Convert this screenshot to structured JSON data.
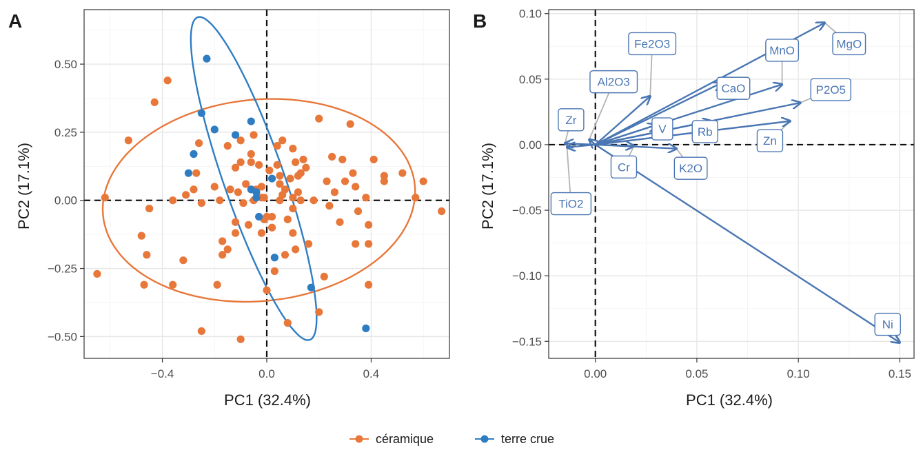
{
  "chart_data": [
    {
      "panel": "A",
      "type": "scatter",
      "xlabel": "PC1 (32.4%)",
      "ylabel": "PC2 (17.1%)",
      "xlim": [
        -0.7,
        0.7
      ],
      "ylim": [
        -0.58,
        0.7
      ],
      "xticks": [
        -0.4,
        0.0,
        0.4
      ],
      "xtick_labels": [
        "−0.4",
        "0.0",
        "0.4"
      ],
      "yticks": [
        -0.5,
        -0.25,
        0.0,
        0.25,
        0.5
      ],
      "ytick_labels": [
        "−0.50",
        "−0.25",
        "0.00",
        "0.25",
        "0.50"
      ],
      "grid": true,
      "reference_lines": {
        "x": 0,
        "y": 0,
        "style": "dashed"
      },
      "series": [
        {
          "name": "céramique",
          "color": "#e8773a",
          "ellipse": {
            "cx": -0.03,
            "cy": 0.0,
            "rx": 0.6,
            "ry": 0.37,
            "angle_deg": 5
          },
          "points": [
            [
              -0.65,
              -0.27
            ],
            [
              -0.62,
              0.01
            ],
            [
              -0.53,
              0.22
            ],
            [
              -0.48,
              -0.13
            ],
            [
              -0.47,
              -0.31
            ],
            [
              -0.46,
              -0.2
            ],
            [
              -0.45,
              -0.03
            ],
            [
              -0.43,
              0.36
            ],
            [
              -0.38,
              0.44
            ],
            [
              -0.36,
              0.0
            ],
            [
              -0.36,
              -0.31
            ],
            [
              -0.32,
              -0.22
            ],
            [
              -0.31,
              0.02
            ],
            [
              -0.28,
              0.04
            ],
            [
              -0.27,
              0.1
            ],
            [
              -0.26,
              0.21
            ],
            [
              -0.25,
              -0.48
            ],
            [
              -0.25,
              -0.01
            ],
            [
              -0.2,
              0.05
            ],
            [
              -0.19,
              -0.31
            ],
            [
              -0.18,
              0.0
            ],
            [
              -0.17,
              -0.2
            ],
            [
              -0.17,
              -0.15
            ],
            [
              -0.15,
              -0.18
            ],
            [
              -0.15,
              0.2
            ],
            [
              -0.14,
              0.04
            ],
            [
              -0.12,
              -0.08
            ],
            [
              -0.12,
              -0.12
            ],
            [
              -0.12,
              0.12
            ],
            [
              -0.11,
              0.03
            ],
            [
              -0.1,
              -0.51
            ],
            [
              -0.1,
              0.22
            ],
            [
              -0.09,
              -0.01
            ],
            [
              -0.1,
              0.14
            ],
            [
              -0.08,
              0.06
            ],
            [
              -0.07,
              -0.09
            ],
            [
              -0.06,
              0.17
            ],
            [
              -0.06,
              0.14
            ],
            [
              -0.05,
              0.0
            ],
            [
              -0.05,
              0.24
            ],
            [
              -0.04,
              0.04
            ],
            [
              -0.03,
              0.13
            ],
            [
              -0.02,
              -0.12
            ],
            [
              -0.02,
              0.05
            ],
            [
              -0.02,
              0.01
            ],
            [
              -0.01,
              -0.07
            ],
            [
              -0.01,
              0.01
            ],
            [
              0.0,
              -0.33
            ],
            [
              0.0,
              -0.06
            ],
            [
              0.01,
              0.11
            ],
            [
              0.02,
              -0.06
            ],
            [
              0.02,
              -0.1
            ],
            [
              0.03,
              -0.26
            ],
            [
              0.04,
              0.2
            ],
            [
              0.04,
              0.13
            ],
            [
              0.05,
              0.06
            ],
            [
              0.05,
              0.0
            ],
            [
              0.05,
              0.09
            ],
            [
              0.06,
              0.22
            ],
            [
              0.06,
              0.02
            ],
            [
              0.07,
              -0.2
            ],
            [
              0.07,
              0.04
            ],
            [
              0.08,
              -0.45
            ],
            [
              0.08,
              -0.07
            ],
            [
              0.09,
              0.08
            ],
            [
              0.1,
              0.19
            ],
            [
              0.1,
              -0.03
            ],
            [
              0.1,
              0.01
            ],
            [
              0.1,
              -0.12
            ],
            [
              0.11,
              -0.18
            ],
            [
              0.11,
              0.14
            ],
            [
              0.12,
              0.03
            ],
            [
              0.12,
              0.09
            ],
            [
              0.13,
              0.0
            ],
            [
              0.13,
              0.1
            ],
            [
              0.14,
              0.15
            ],
            [
              0.15,
              0.12
            ],
            [
              0.16,
              -0.16
            ],
            [
              0.18,
              0.0
            ],
            [
              0.2,
              -0.41
            ],
            [
              0.2,
              0.3
            ],
            [
              0.22,
              -0.28
            ],
            [
              0.23,
              0.07
            ],
            [
              0.24,
              -0.02
            ],
            [
              0.25,
              0.16
            ],
            [
              0.26,
              0.03
            ],
            [
              0.28,
              -0.08
            ],
            [
              0.29,
              0.15
            ],
            [
              0.3,
              0.07
            ],
            [
              0.32,
              0.28
            ],
            [
              0.33,
              0.1
            ],
            [
              0.34,
              0.05
            ],
            [
              0.34,
              -0.16
            ],
            [
              0.35,
              -0.04
            ],
            [
              0.38,
              0.01
            ],
            [
              0.39,
              -0.16
            ],
            [
              0.39,
              -0.09
            ],
            [
              0.39,
              -0.31
            ],
            [
              0.41,
              0.15
            ],
            [
              0.45,
              0.07
            ],
            [
              0.45,
              0.09
            ],
            [
              0.52,
              0.1
            ],
            [
              0.57,
              0.01
            ],
            [
              0.6,
              0.07
            ],
            [
              0.67,
              -0.04
            ]
          ]
        },
        {
          "name": "terre crue",
          "color": "#2e7dc3",
          "ellipse": {
            "cx": -0.05,
            "cy": 0.08,
            "rx": 0.63,
            "ry": 0.115,
            "angle_deg": -70
          },
          "points": [
            [
              -0.23,
              0.52
            ],
            [
              -0.25,
              0.32
            ],
            [
              -0.2,
              0.26
            ],
            [
              -0.28,
              0.17
            ],
            [
              -0.3,
              0.1
            ],
            [
              -0.12,
              0.24
            ],
            [
              -0.06,
              0.29
            ],
            [
              -0.06,
              0.04
            ],
            [
              -0.04,
              0.03
            ],
            [
              -0.04,
              0.01
            ],
            [
              -0.03,
              -0.06
            ],
            [
              0.02,
              0.08
            ],
            [
              0.03,
              -0.21
            ],
            [
              0.17,
              -0.32
            ],
            [
              0.38,
              -0.47
            ]
          ]
        }
      ]
    },
    {
      "panel": "B",
      "type": "biplot_loadings",
      "xlabel": "PC1 (32.4%)",
      "ylabel": "PC2 (17.1%)",
      "xlim": [
        -0.023,
        0.157
      ],
      "ylim": [
        -0.163,
        0.103
      ],
      "xticks": [
        0.0,
        0.05,
        0.1,
        0.15
      ],
      "xtick_labels": [
        "0.00",
        "0.05",
        "0.10",
        "0.15"
      ],
      "yticks": [
        -0.15,
        -0.1,
        -0.05,
        0.0,
        0.05,
        0.1
      ],
      "ytick_labels": [
        "−0.15",
        "−0.10",
        "−0.05",
        "0.00",
        "0.05",
        "0.10"
      ],
      "grid": true,
      "reference_lines": {
        "x": 0,
        "y": 0,
        "style": "dashed"
      },
      "arrow_color": "#4a76b3",
      "loadings": [
        {
          "name": "MgO",
          "x": 0.113,
          "y": 0.093,
          "label_x": 0.125,
          "label_y": 0.077
        },
        {
          "name": "MnO",
          "x": 0.092,
          "y": 0.046,
          "label_x": 0.092,
          "label_y": 0.072
        },
        {
          "name": "P2O5",
          "x": 0.101,
          "y": 0.032,
          "label_x": 0.116,
          "label_y": 0.042
        },
        {
          "name": "Zn",
          "x": 0.096,
          "y": 0.018,
          "label_x": 0.086,
          "label_y": 0.003
        },
        {
          "name": "CaO",
          "x": 0.062,
          "y": 0.047,
          "label_x": 0.068,
          "label_y": 0.043
        },
        {
          "name": "Rb",
          "x": 0.057,
          "y": 0.018,
          "label_x": 0.054,
          "label_y": 0.01
        },
        {
          "name": "K2O",
          "x": 0.04,
          "y": -0.003,
          "label_x": 0.047,
          "label_y": -0.018
        },
        {
          "name": "Cr",
          "x": 0.019,
          "y": -0.001,
          "label_x": 0.014,
          "label_y": -0.017
        },
        {
          "name": "V",
          "x": 0.03,
          "y": 0.015,
          "label_x": 0.033,
          "label_y": 0.012
        },
        {
          "name": "Fe2O3",
          "x": 0.027,
          "y": 0.037,
          "label_x": 0.028,
          "label_y": 0.077
        },
        {
          "name": "Al2O3",
          "x": -0.003,
          "y": 0.004,
          "label_x": 0.009,
          "label_y": 0.048
        },
        {
          "name": "Zr",
          "x": -0.015,
          "y": 0.001,
          "label_x": -0.012,
          "label_y": 0.019
        },
        {
          "name": "TiO2",
          "x": -0.014,
          "y": -0.002,
          "label_x": -0.012,
          "label_y": -0.045
        },
        {
          "name": "Ni",
          "x": 0.15,
          "y": -0.151,
          "label_x": 0.144,
          "label_y": -0.137
        }
      ]
    }
  ],
  "legend": {
    "placement": "bottom",
    "items": [
      {
        "label": "céramique",
        "color": "#e8773a"
      },
      {
        "label": "terre crue",
        "color": "#2e7dc3"
      }
    ]
  }
}
